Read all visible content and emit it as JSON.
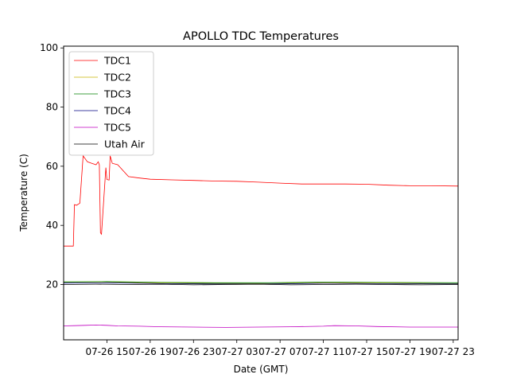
{
  "chart_data": {
    "type": "line",
    "title": "APOLLO TDC Temperatures",
    "xlabel": "Date (GMT)",
    "ylabel": "Temperature (C)",
    "x_unit": "hours",
    "xlim": [
      11.0,
      47.45
    ],
    "ylim": [
      1.3,
      100.6
    ],
    "xticks": [
      {
        "value": 15,
        "label": "07-26 15"
      },
      {
        "value": 19,
        "label": "07-26 19"
      },
      {
        "value": 23,
        "label": "07-26 23"
      },
      {
        "value": 27,
        "label": "07-27 03"
      },
      {
        "value": 31,
        "label": "07-27 07"
      },
      {
        "value": 35,
        "label": "07-27 11"
      },
      {
        "value": 39,
        "label": "07-27 15"
      },
      {
        "value": 43,
        "label": "07-27 19"
      },
      {
        "value": 47,
        "label": "07-27 23"
      }
    ],
    "yticks": [
      {
        "value": 20,
        "label": "20"
      },
      {
        "value": 40,
        "label": "40"
      },
      {
        "value": 60,
        "label": "60"
      },
      {
        "value": 80,
        "label": "80"
      },
      {
        "value": 100,
        "label": "100"
      }
    ],
    "grid": false,
    "legend_position": "upper-left",
    "series": [
      {
        "name": "TDC1",
        "color": "#ff0000",
        "x": [
          11.0,
          11.9,
          12.0,
          12.2,
          12.5,
          12.8,
          13.2,
          13.6,
          14.0,
          14.2,
          14.3,
          14.4,
          14.5,
          14.9,
          15.0,
          15.2,
          15.3,
          15.5,
          16.0,
          17.0,
          18.0,
          19.0,
          21.0,
          23.0,
          25.0,
          27.0,
          29.0,
          31.0,
          33.0,
          35.0,
          37.0,
          39.0,
          41.0,
          43.0,
          45.0,
          47.45
        ],
        "y": [
          33.0,
          33.0,
          47.0,
          46.8,
          47.5,
          63.5,
          61.5,
          61.0,
          60.5,
          61.5,
          60.5,
          37.5,
          37.0,
          59.5,
          55.5,
          55.3,
          63.5,
          61.0,
          60.5,
          56.5,
          56.0,
          55.6,
          55.4,
          55.2,
          55.0,
          54.9,
          54.6,
          54.3,
          54.0,
          54.0,
          54.0,
          53.9,
          53.6,
          53.4,
          53.4,
          53.3
        ]
      },
      {
        "name": "TDC2",
        "color": "#c8b400",
        "x": [
          11.0,
          15.0,
          20.0,
          25.0,
          30.0,
          35.0,
          40.0,
          47.45
        ],
        "y": [
          20.8,
          20.9,
          20.5,
          20.4,
          20.3,
          20.6,
          20.5,
          20.3
        ]
      },
      {
        "name": "TDC3",
        "color": "#008000",
        "x": [
          11.0,
          15.0,
          20.0,
          25.0,
          30.0,
          35.0,
          40.0,
          47.45
        ],
        "y": [
          20.9,
          21.0,
          20.7,
          20.6,
          20.6,
          20.8,
          20.7,
          20.6
        ]
      },
      {
        "name": "TDC4",
        "color": "#000080",
        "x": [
          11.0,
          15.0,
          20.0,
          25.0,
          30.0,
          35.0,
          40.0,
          47.45
        ],
        "y": [
          20.5,
          20.6,
          20.3,
          20.2,
          20.2,
          20.4,
          20.3,
          20.2
        ]
      },
      {
        "name": "TDC5",
        "color": "#c000c0",
        "x": [
          11.0,
          12.0,
          13.0,
          14.0,
          15.0,
          16.0,
          18.0,
          20.0,
          23.0,
          26.0,
          29.0,
          32.0,
          35.0,
          36.0,
          38.0,
          40.0,
          43.0,
          45.0,
          47.45
        ],
        "y": [
          6.0,
          6.1,
          6.2,
          6.3,
          6.2,
          6.0,
          5.9,
          5.7,
          5.6,
          5.5,
          5.6,
          5.7,
          5.9,
          6.1,
          6.0,
          5.8,
          5.6,
          5.6,
          5.6
        ]
      },
      {
        "name": "Utah Air",
        "color": "#000000",
        "x": [
          11.0,
          14.0,
          17.0,
          20.0,
          23.0,
          26.0,
          29.0,
          32.0,
          35.0,
          38.0,
          41.0,
          44.0,
          47.45
        ],
        "y": [
          20.0,
          20.1,
          20.0,
          20.1,
          19.9,
          20.0,
          20.1,
          19.9,
          20.0,
          20.1,
          20.0,
          19.9,
          20.0
        ]
      }
    ]
  }
}
